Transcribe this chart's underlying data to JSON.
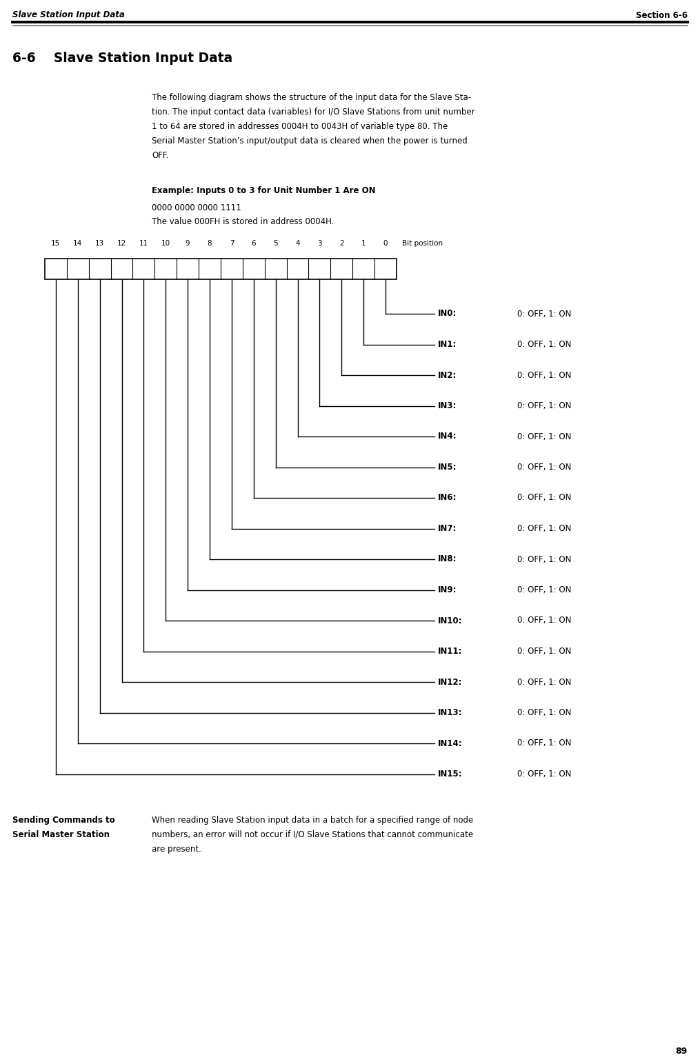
{
  "page_header_left": "Slave Station Input Data",
  "page_header_right": "Section 6-6",
  "section_title": "6-6    Slave Station Input Data",
  "body_lines": [
    "The following diagram shows the structure of the input data for the Slave Sta-",
    "tion. The input contact data (variables) for I/O Slave Stations from unit number",
    "1 to 64 are stored in addresses 0004H to 0043H of variable type 80. The",
    "Serial Master Station’s input/output data is cleared when the power is turned",
    "OFF."
  ],
  "example_title": "Example: Inputs 0 to 3 for Unit Number 1 Are ON",
  "example_line1": "0000 0000 0000 1111",
  "example_line2": "The value 000FH is stored in address 0004H.",
  "bit_labels": [
    "15",
    "14",
    "13",
    "12",
    "11",
    "10",
    "9",
    "8",
    "7",
    "6",
    "5",
    "4",
    "3",
    "2",
    "1",
    "0"
  ],
  "bit_position_label": "Bit position",
  "in_labels": [
    "IN0:",
    "IN1:",
    "IN2:",
    "IN3:",
    "IN4:",
    "IN5:",
    "IN6:",
    "IN7:",
    "IN8:",
    "IN9:",
    "IN10:",
    "IN11:",
    "IN12:",
    "IN13:",
    "IN14:",
    "IN15:"
  ],
  "in_description": "0: OFF, 1: ON",
  "sending_title_line1": "Sending Commands to",
  "sending_title_line2": "Serial Master Station",
  "sending_body_lines": [
    "When reading Slave Station input data in a batch for a specified range of node",
    "numbers, an error will not occur if I/O Slave Stations that cannot communicate",
    "are present."
  ],
  "page_number": "89",
  "bg_color": "#ffffff",
  "text_color": "#000000"
}
